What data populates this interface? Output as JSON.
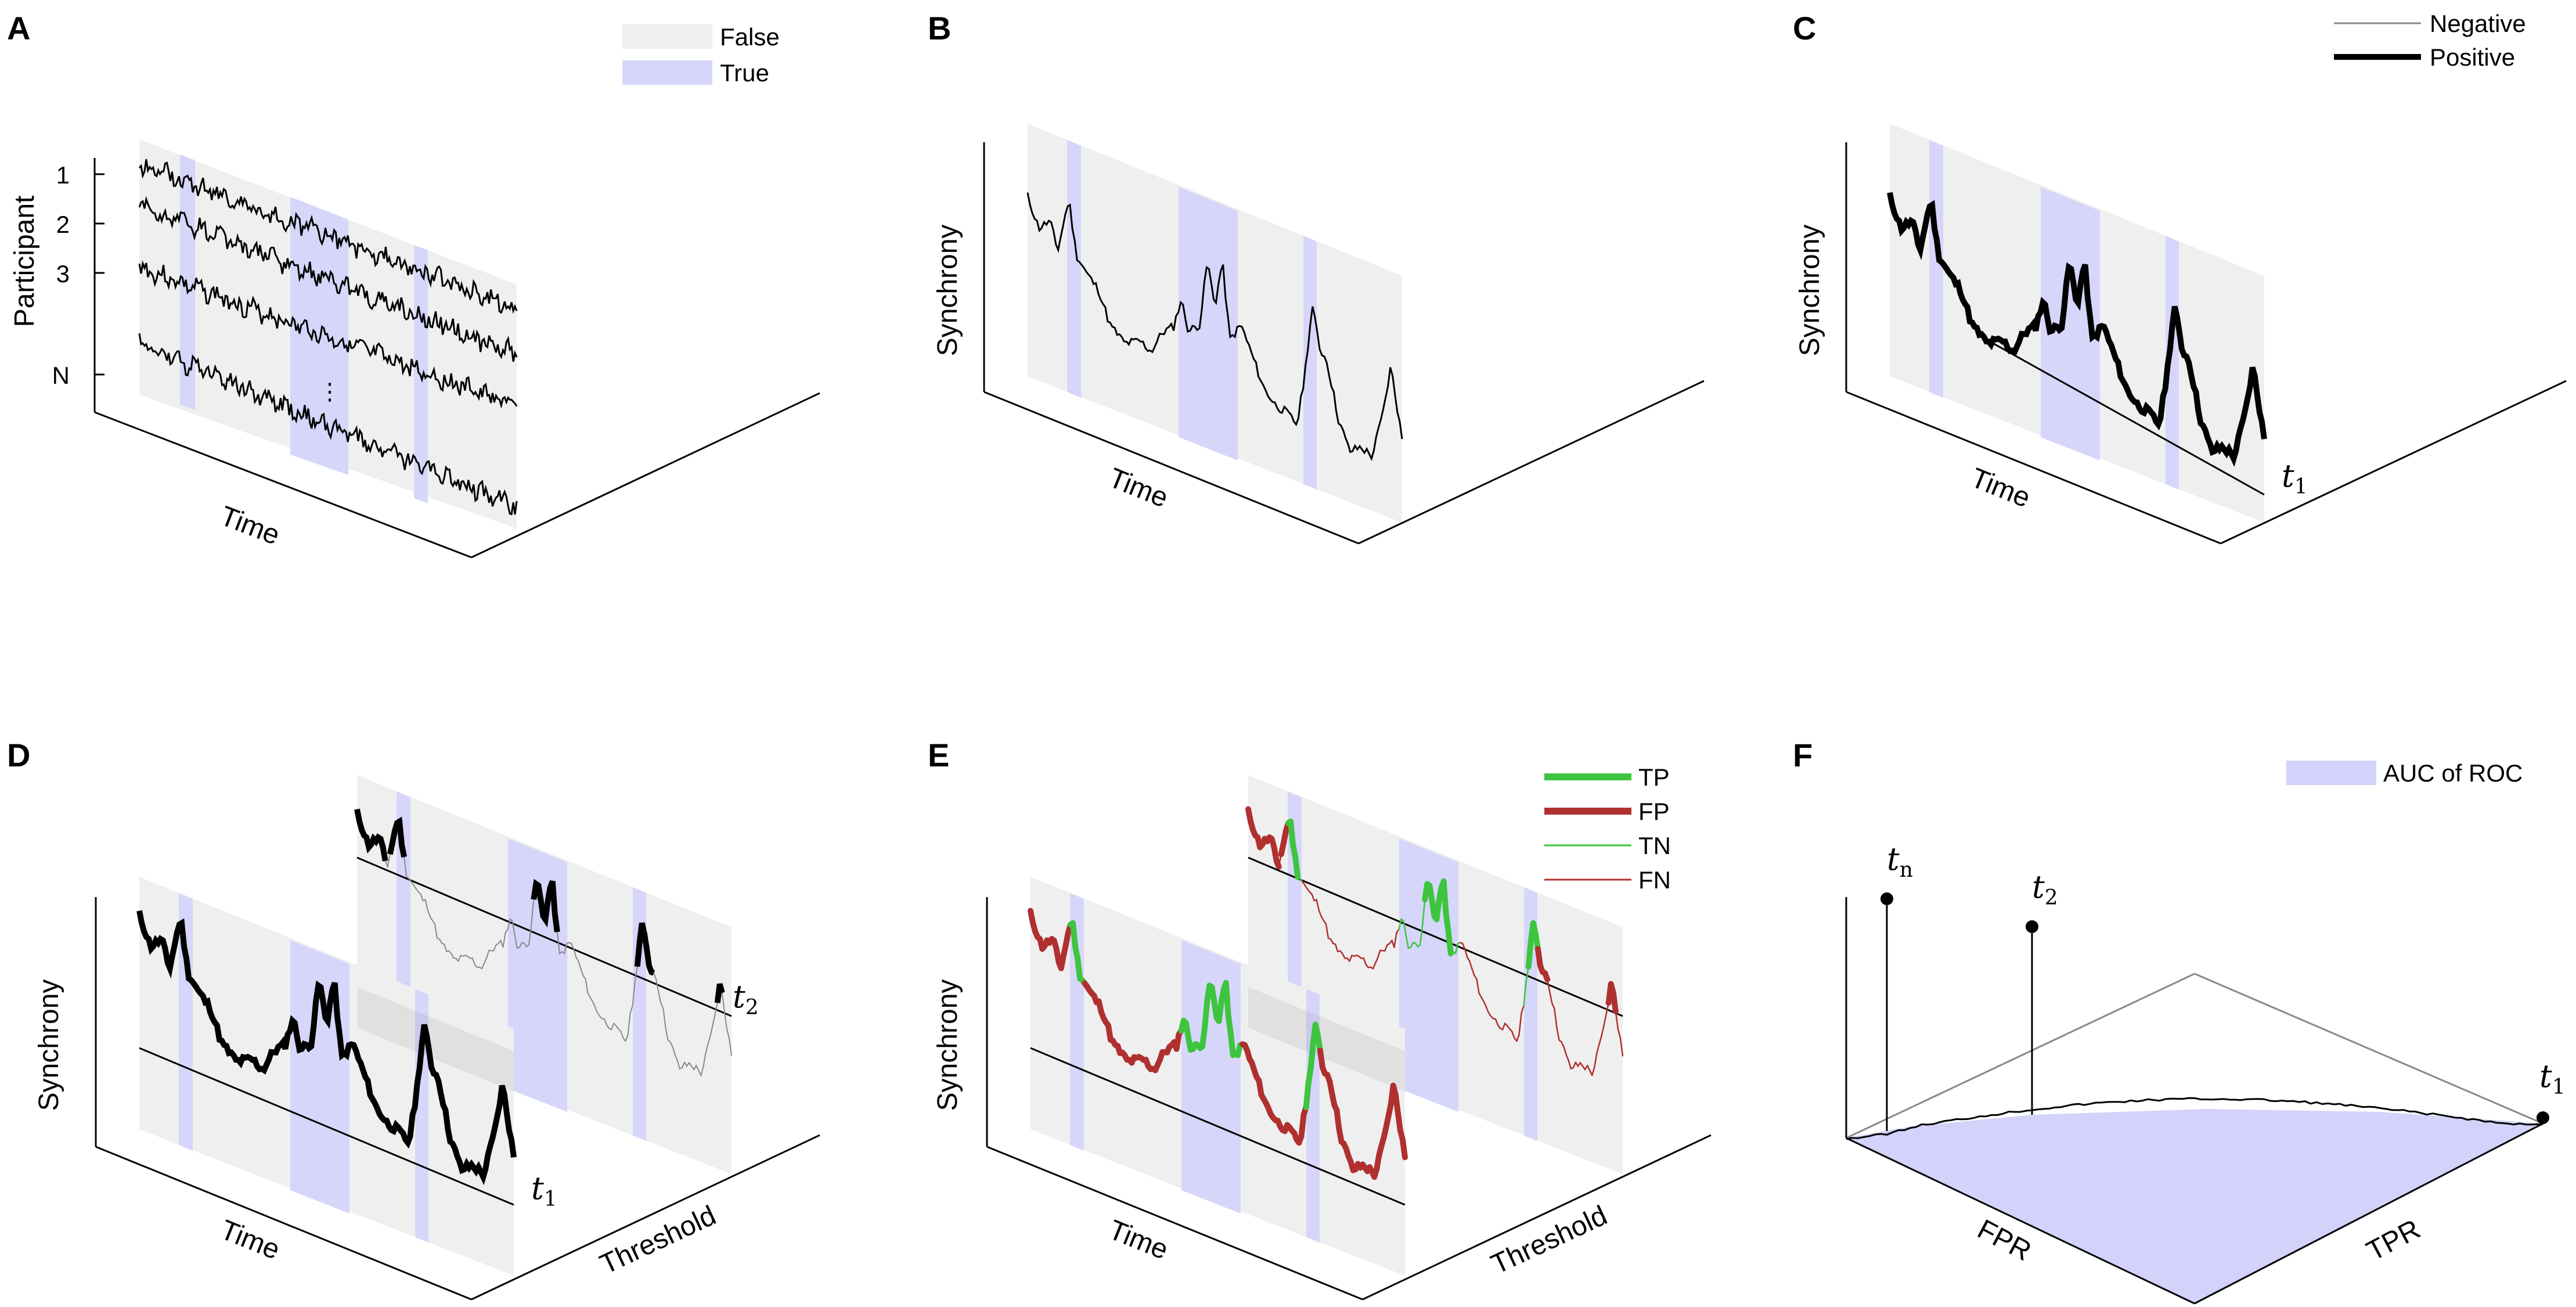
{
  "colors": {
    "false_band": "#efefef",
    "true_band": "#d6d6fb",
    "tp": "#3ec43e",
    "fp": "#b03030",
    "tn": "#3ec43e",
    "fn": "#b03030",
    "auc_fill": "#d2d2fa",
    "signal": "#000000",
    "negative_signal": "#888888"
  },
  "panels": {
    "a": {
      "letter": "A",
      "y_label": "Participant",
      "x_label": "Time",
      "ticks": [
        "1",
        "2",
        "3",
        "N"
      ],
      "ellipsis": "⋮",
      "legend": [
        {
          "label": "False",
          "swatch": "false_band"
        },
        {
          "label": "True",
          "swatch": "true_band"
        }
      ]
    },
    "b": {
      "letter": "B",
      "y_label": "Synchrony",
      "x_label": "Time"
    },
    "c": {
      "letter": "C",
      "y_label": "Synchrony",
      "x_label": "Time",
      "threshold_label": "t",
      "threshold_sub": "1",
      "legend": [
        {
          "label": "Negative",
          "style": "thin"
        },
        {
          "label": "Positive",
          "style": "thick"
        }
      ]
    },
    "d": {
      "letter": "D",
      "y_label": "Synchrony",
      "x_label": "Time",
      "z_label": "Threshold",
      "t1": "t",
      "t1_sub": "1",
      "t2": "t",
      "t2_sub": "2"
    },
    "e": {
      "letter": "E",
      "y_label": "Synchrony",
      "x_label": "Time",
      "z_label": "Threshold",
      "legend": [
        {
          "label": "TP",
          "color": "tp",
          "style": "thick"
        },
        {
          "label": "FP",
          "color": "fp",
          "style": "thick"
        },
        {
          "label": "TN",
          "color": "tn",
          "style": "thin"
        },
        {
          "label": "FN",
          "color": "fn",
          "style": "thin"
        }
      ]
    },
    "f": {
      "letter": "F",
      "x_label": "FPR",
      "z_label": "TPR",
      "legend": "AUC of ROC",
      "tn": "t",
      "tn_sub": "n",
      "t2": "t",
      "t2_sub": "2",
      "t1": "t",
      "t1_sub": "1"
    }
  }
}
